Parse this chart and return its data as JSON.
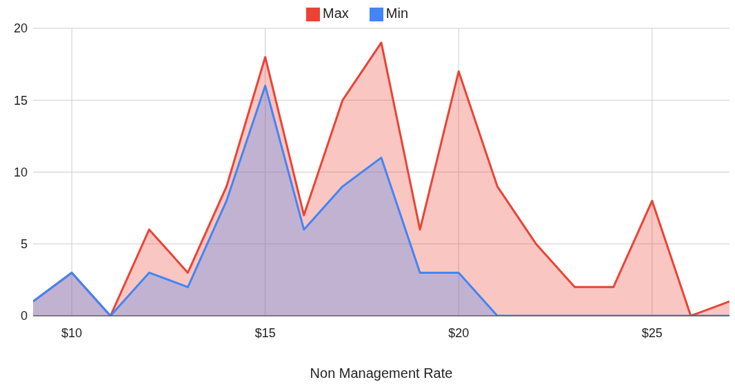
{
  "chart_data": {
    "type": "area",
    "xlabel": "Non Management Rate",
    "x": [
      9,
      10,
      11,
      12,
      13,
      14,
      15,
      16,
      17,
      18,
      19,
      20,
      21,
      22,
      23,
      24,
      25,
      26,
      27
    ],
    "series": [
      {
        "name": "Max",
        "color": "#ea4335",
        "values": [
          1,
          3,
          0,
          6,
          3,
          9,
          18,
          7,
          15,
          19,
          6,
          17,
          9,
          5,
          2,
          2,
          8,
          0,
          1
        ]
      },
      {
        "name": "Min",
        "color": "#4285f4",
        "values": [
          1,
          3,
          0,
          3,
          2,
          8,
          16,
          6,
          9,
          11,
          3,
          3,
          0,
          0,
          0,
          0,
          0,
          0,
          0
        ]
      }
    ],
    "xlim": [
      9,
      27
    ],
    "xticks": [
      {
        "value": 10,
        "label": "$10"
      },
      {
        "value": 15,
        "label": "$15"
      },
      {
        "value": 20,
        "label": "$20"
      },
      {
        "value": 25,
        "label": "$25"
      }
    ],
    "ylim": [
      0,
      20
    ],
    "yticks": [
      0,
      5,
      10,
      15,
      20
    ],
    "grid": true,
    "legend": "top"
  }
}
